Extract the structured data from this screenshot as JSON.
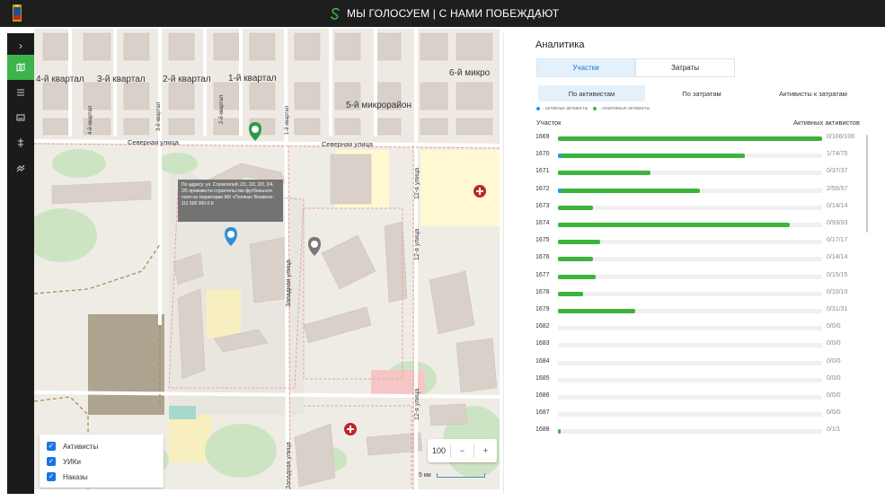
{
  "header": {
    "title": "МЫ ГОЛОСУЕМ | С НАМИ ПОБЕЖДАЮТ",
    "brand_icon": "s-logo-icon",
    "menu_icon": "more-vert-icon"
  },
  "sidebar": {
    "items": [
      {
        "name": "expand",
        "icon": "chevron-right-icon",
        "glyph": "›"
      },
      {
        "name": "map",
        "icon": "map-icon",
        "glyph": "▥",
        "active": true
      },
      {
        "name": "list",
        "icon": "list-icon",
        "glyph": "≡"
      },
      {
        "name": "card",
        "icon": "card-icon",
        "glyph": "▭"
      },
      {
        "name": "routes",
        "icon": "routes-icon",
        "glyph": "⇅"
      },
      {
        "name": "analytics",
        "icon": "analytics-icon",
        "glyph": "≂"
      }
    ]
  },
  "map": {
    "labels": {
      "q4": "4-й квартал",
      "q3": "3-й квартал",
      "q2": "2-й квартал",
      "q1": "1-й квартал",
      "q6": "6-й микро",
      "q5": "5-й микрорайон",
      "north1": "Северная улица",
      "north2": "Северная улица",
      "west": "Западная улица",
      "st12a": "12-я улица",
      "st12b": "12-я улица",
      "st12c": "12-я улица",
      "west2": "Западная улица",
      "q4v": "4-й квартал",
      "q3v": "3-й квартал",
      "q2v": "2-й квартал",
      "q1v": "1-й квартал"
    },
    "popup": {
      "text": "По адресу: ул. Строителей, 2/1, 2/2, 2/3, 2/4, 2/5 произвести строительство футбольного поля на территории ЖК «Поляна» Вложено: 111 500 000.0 ₽"
    },
    "layers": [
      {
        "label": "Активисты",
        "checked": true
      },
      {
        "label": "УИКи",
        "checked": true
      },
      {
        "label": "Наказы",
        "checked": true
      }
    ],
    "zoom": {
      "level": "100",
      "minus": "−",
      "plus": "+"
    },
    "scale": "5 км"
  },
  "analytics": {
    "title": "Аналитика",
    "tabs": [
      {
        "label": "Участки",
        "active": true
      },
      {
        "label": "Затраты",
        "active": false
      }
    ],
    "subtabs": [
      {
        "label": "По активистам",
        "active": true
      },
      {
        "label": "По затратам",
        "active": false
      },
      {
        "label": "Активисты к затратам",
        "active": false
      }
    ],
    "legend": {
      "active": "- активные активисты",
      "inactive": "- неактивные активисты",
      "active_color": "#2196f3",
      "inactive_color": "#3cb43c"
    },
    "col_left": "Участок",
    "col_right": "Активных активистов",
    "rows": [
      {
        "id": "1669",
        "active": 0,
        "done": 106,
        "total": 106,
        "label": "0/106/106"
      },
      {
        "id": "1670",
        "active": 1,
        "done": 74,
        "total": 75,
        "label": "1/74/75"
      },
      {
        "id": "1671",
        "active": 0,
        "done": 37,
        "total": 37,
        "label": "0/37/37"
      },
      {
        "id": "1672",
        "active": 2,
        "done": 55,
        "total": 57,
        "label": "2/55/57"
      },
      {
        "id": "1673",
        "active": 0,
        "done": 14,
        "total": 14,
        "label": "0/14/14"
      },
      {
        "id": "1674",
        "active": 0,
        "done": 93,
        "total": 93,
        "label": "0/93/93"
      },
      {
        "id": "1675",
        "active": 0,
        "done": 17,
        "total": 17,
        "label": "0/17/17"
      },
      {
        "id": "1676",
        "active": 0,
        "done": 14,
        "total": 14,
        "label": "0/14/14"
      },
      {
        "id": "1677",
        "active": 0,
        "done": 15,
        "total": 15,
        "label": "0/15/15"
      },
      {
        "id": "1678",
        "active": 0,
        "done": 10,
        "total": 10,
        "label": "0/10/10"
      },
      {
        "id": "1679",
        "active": 0,
        "done": 31,
        "total": 31,
        "label": "0/31/31"
      },
      {
        "id": "1682",
        "active": 0,
        "done": 0,
        "total": 0,
        "label": "0/0/0"
      },
      {
        "id": "1683",
        "active": 0,
        "done": 0,
        "total": 0,
        "label": "0/0/0"
      },
      {
        "id": "1684",
        "active": 0,
        "done": 0,
        "total": 0,
        "label": "0/0/0"
      },
      {
        "id": "1685",
        "active": 0,
        "done": 0,
        "total": 0,
        "label": "0/0/0"
      },
      {
        "id": "1686",
        "active": 0,
        "done": 0,
        "total": 0,
        "label": "0/0/0"
      },
      {
        "id": "1687",
        "active": 0,
        "done": 0,
        "total": 0,
        "label": "0/0/0"
      },
      {
        "id": "1688",
        "active": 0,
        "done": 1,
        "total": 1,
        "label": "0/1/1"
      }
    ],
    "max_total": 106
  }
}
